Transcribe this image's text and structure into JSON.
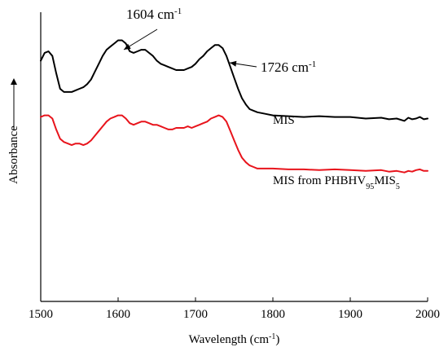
{
  "chart_data": {
    "type": "line",
    "xlabel": "Wavelength (cm",
    "xlabel_sup": "-1",
    "xlabel_end": ")",
    "ylabel": "Absorbance",
    "xlim": [
      1500,
      2000
    ],
    "x_ticks": [
      1500,
      1600,
      1700,
      1800,
      1900,
      2000
    ],
    "y_ticks": [],
    "grid": false,
    "legend": "none",
    "series": [
      {
        "label_parts": [
          {
            "text": "MIS",
            "sub": false
          }
        ],
        "color": "#000000",
        "x": [
          1500,
          1505,
          1510,
          1515,
          1520,
          1525,
          1530,
          1535,
          1540,
          1545,
          1550,
          1555,
          1560,
          1565,
          1570,
          1575,
          1580,
          1585,
          1590,
          1595,
          1600,
          1605,
          1610,
          1615,
          1620,
          1625,
          1630,
          1635,
          1640,
          1645,
          1650,
          1655,
          1660,
          1665,
          1670,
          1675,
          1680,
          1685,
          1690,
          1695,
          1700,
          1705,
          1710,
          1715,
          1720,
          1725,
          1730,
          1735,
          1740,
          1745,
          1750,
          1755,
          1760,
          1765,
          1770,
          1775,
          1780,
          1790,
          1800,
          1820,
          1840,
          1860,
          1880,
          1900,
          1920,
          1940,
          1950,
          1960,
          1970,
          1975,
          1980,
          1985,
          1990,
          1995,
          2000
        ],
        "y": [
          0.74,
          0.79,
          0.8,
          0.77,
          0.66,
          0.56,
          0.54,
          0.54,
          0.54,
          0.55,
          0.56,
          0.57,
          0.59,
          0.62,
          0.67,
          0.72,
          0.77,
          0.81,
          0.83,
          0.85,
          0.87,
          0.87,
          0.85,
          0.8,
          0.79,
          0.8,
          0.81,
          0.81,
          0.79,
          0.77,
          0.74,
          0.72,
          0.71,
          0.7,
          0.69,
          0.68,
          0.68,
          0.68,
          0.69,
          0.7,
          0.72,
          0.75,
          0.77,
          0.8,
          0.82,
          0.84,
          0.84,
          0.82,
          0.77,
          0.7,
          0.63,
          0.56,
          0.5,
          0.46,
          0.43,
          0.42,
          0.41,
          0.4,
          0.39,
          0.385,
          0.38,
          0.385,
          0.38,
          0.38,
          0.37,
          0.375,
          0.365,
          0.37,
          0.355,
          0.375,
          0.365,
          0.37,
          0.38,
          0.365,
          0.37
        ]
      },
      {
        "label_parts": [
          {
            "text": "MIS from PHBHV",
            "sub": false
          },
          {
            "text": "95",
            "sub": true
          },
          {
            "text": "MIS",
            "sub": false
          },
          {
            "text": "5",
            "sub": true
          }
        ],
        "color": "#e8141c",
        "x": [
          1500,
          1505,
          1510,
          1515,
          1520,
          1525,
          1530,
          1535,
          1540,
          1545,
          1550,
          1555,
          1560,
          1565,
          1570,
          1575,
          1580,
          1585,
          1590,
          1595,
          1600,
          1605,
          1610,
          1615,
          1620,
          1625,
          1630,
          1635,
          1640,
          1645,
          1650,
          1655,
          1660,
          1665,
          1670,
          1675,
          1680,
          1685,
          1690,
          1695,
          1700,
          1705,
          1710,
          1715,
          1720,
          1725,
          1730,
          1735,
          1740,
          1745,
          1750,
          1755,
          1760,
          1765,
          1770,
          1775,
          1780,
          1790,
          1800,
          1820,
          1840,
          1860,
          1880,
          1900,
          1920,
          1940,
          1950,
          1960,
          1970,
          1975,
          1980,
          1985,
          1990,
          1995,
          2000
        ],
        "y": [
          0.38,
          0.39,
          0.39,
          0.37,
          0.3,
          0.24,
          0.22,
          0.21,
          0.2,
          0.21,
          0.21,
          0.2,
          0.21,
          0.23,
          0.26,
          0.29,
          0.32,
          0.35,
          0.37,
          0.38,
          0.39,
          0.39,
          0.37,
          0.34,
          0.33,
          0.34,
          0.35,
          0.35,
          0.34,
          0.33,
          0.33,
          0.32,
          0.31,
          0.3,
          0.3,
          0.31,
          0.31,
          0.31,
          0.32,
          0.31,
          0.32,
          0.33,
          0.34,
          0.35,
          0.37,
          0.38,
          0.39,
          0.38,
          0.35,
          0.29,
          0.23,
          0.17,
          0.12,
          0.09,
          0.07,
          0.06,
          0.05,
          0.05,
          0.05,
          0.045,
          0.045,
          0.04,
          0.045,
          0.04,
          0.035,
          0.04,
          0.03,
          0.035,
          0.025,
          0.035,
          0.03,
          0.04,
          0.045,
          0.035,
          0.035
        ]
      }
    ],
    "annotations": [
      {
        "text": "1604 cm",
        "sup": "-1",
        "x": 1604
      },
      {
        "text": "1726 cm",
        "sup": "-1",
        "x": 1726
      }
    ]
  }
}
